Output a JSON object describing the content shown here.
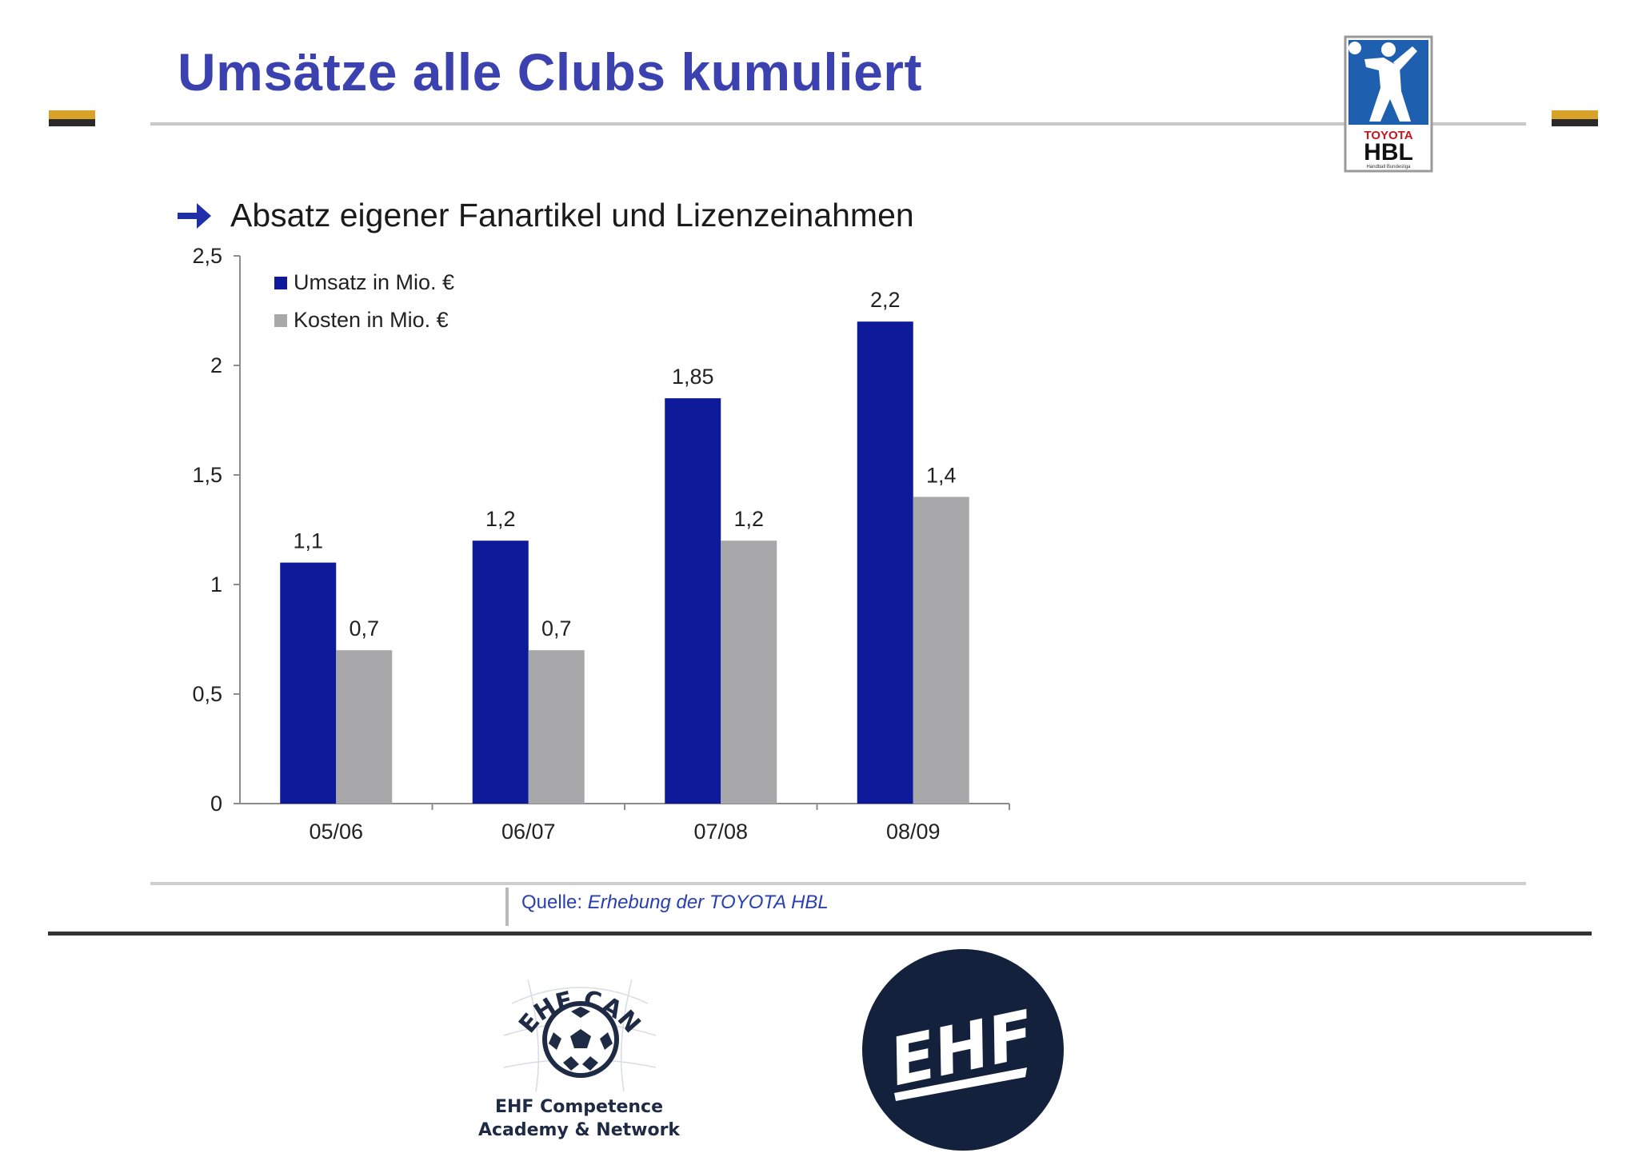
{
  "slide": {
    "title": "Umsätze alle Clubs kumuliert",
    "subtitle": "Absatz eigener Fanartikel und Lizenzeinahmen",
    "source_label": "Quelle:",
    "source_text": "Erhebung der TOYOTA HBL"
  },
  "colors": {
    "title": "#3b42b0",
    "accent_gold": "#d8a228",
    "umsatz": "#0d1a99",
    "kosten": "#a8a7aa",
    "arrow": "#1e2fa8",
    "ehf_navy": "#14213d"
  },
  "logos": {
    "hbl": {
      "brand": "TOYOTA",
      "name": "HBL",
      "tagline": "Handball Bundesliga"
    },
    "ehf_can": {
      "arc_text": "EHF CAN",
      "line1": "EHF Competence",
      "line2": "Academy & Network"
    },
    "ehf": {
      "text": "EHF"
    }
  },
  "icons": {
    "bullet": "right-arrow-icon",
    "hbl": "handball-player-icon",
    "ball": "handball-icon"
  },
  "chart_data": {
    "type": "bar",
    "categories": [
      "05/06",
      "06/07",
      "07/08",
      "08/09"
    ],
    "series": [
      {
        "name": "Umsatz in Mio. €",
        "values": [
          1.1,
          1.2,
          1.85,
          2.2
        ],
        "labels": [
          "1,1",
          "1,2",
          "1,85",
          "2,2"
        ]
      },
      {
        "name": "Kosten in Mio. €",
        "values": [
          0.7,
          0.7,
          1.2,
          1.4
        ],
        "labels": [
          "0,7",
          "0,7",
          "1,2",
          "1,4"
        ]
      }
    ],
    "ylim": [
      0,
      2.5
    ],
    "yticks": [
      0,
      0.5,
      1,
      1.5,
      2,
      2.5
    ],
    "ytick_labels": [
      "0",
      "0,5",
      "1",
      "1,5",
      "2",
      "2,5"
    ],
    "legend": "top-left",
    "grid": false,
    "title": "",
    "xlabel": "",
    "ylabel": ""
  }
}
